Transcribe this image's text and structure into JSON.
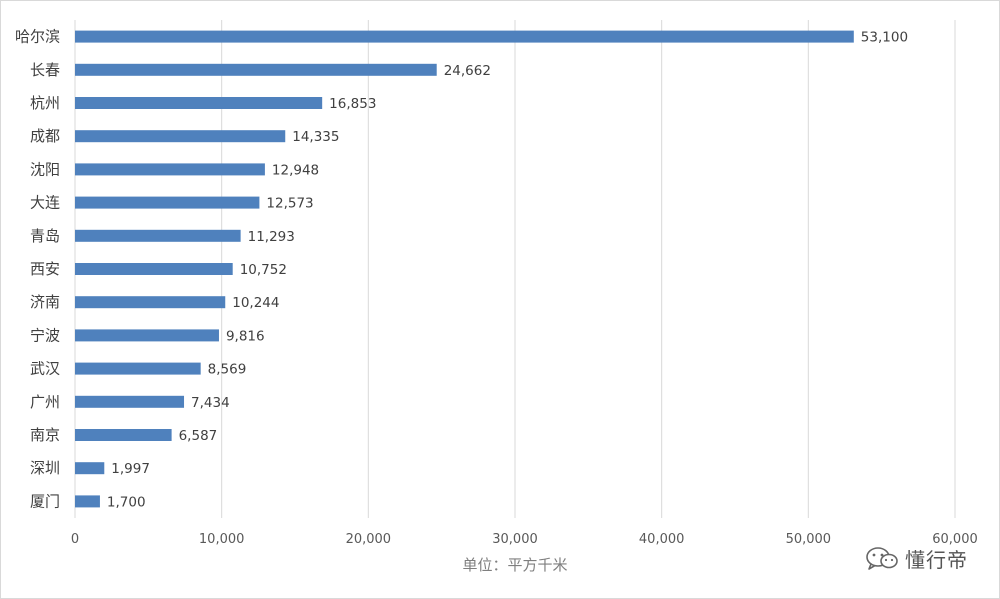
{
  "chart_data": {
    "type": "bar",
    "orientation": "horizontal",
    "categories": [
      "哈尔滨",
      "长春",
      "杭州",
      "成都",
      "沈阳",
      "大连",
      "青岛",
      "西安",
      "济南",
      "宁波",
      "武汉",
      "广州",
      "南京",
      "深圳",
      "厦门"
    ],
    "values": [
      53100,
      24662,
      16853,
      14335,
      12948,
      12573,
      11293,
      10752,
      10244,
      9816,
      8569,
      7434,
      6587,
      1997,
      1700
    ],
    "value_labels": [
      "53,100",
      "24,662",
      "16,853",
      "14,335",
      "12,948",
      "12,573",
      "11,293",
      "10,752",
      "10,244",
      "9,816",
      "8,569",
      "7,434",
      "6,587",
      "1,997",
      "1,700"
    ],
    "xlim": [
      0,
      60000
    ],
    "x_ticks": [
      0,
      10000,
      20000,
      30000,
      40000,
      50000,
      60000
    ],
    "x_tick_labels": [
      "0",
      "10,000",
      "20,000",
      "30,000",
      "40,000",
      "50,000",
      "60,000"
    ],
    "xlabel": "单位：平方千米",
    "ylabel": "",
    "title": "",
    "grid": "vertical",
    "bar_color": "#4f81bd",
    "grid_color": "#d9d9d9"
  },
  "watermark": {
    "icon": "wechat-icon",
    "text": "懂行帝"
  }
}
